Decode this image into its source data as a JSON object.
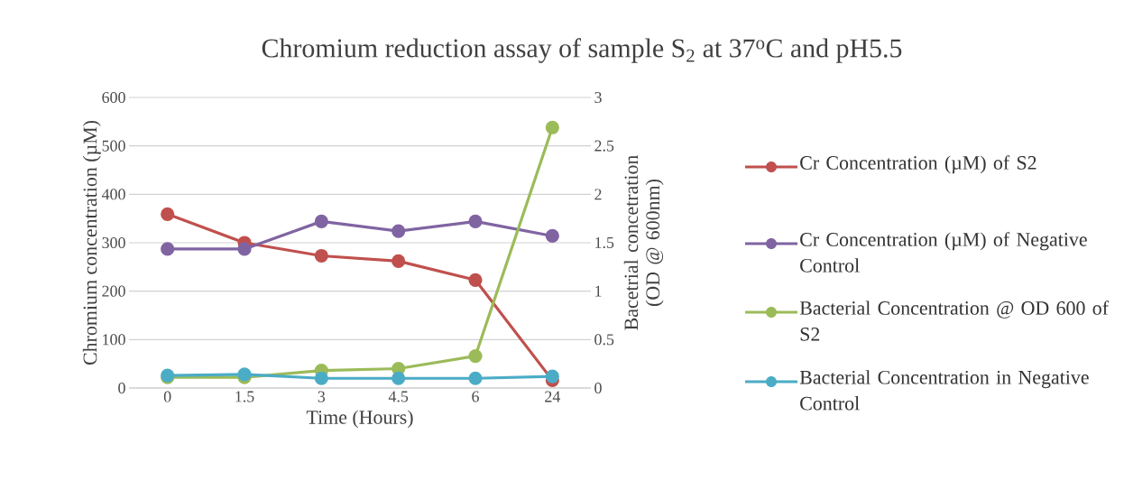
{
  "chart_data": {
    "type": "line",
    "title": "Chromium reduction assay of sample S$_{2}$ at 37$^{o}$C and pH5.5",
    "xlabel": "Time (Hours)",
    "ylabel": "Chromium concentration (µM)",
    "y2label": "Bacetrial concetration (OD @ 600nm)",
    "categories": [
      "0",
      "1.5",
      "3",
      "4.5",
      "6",
      "24"
    ],
    "series": [
      {
        "name": "Cr Concentration (µM) of S2",
        "color": "#c0504d",
        "values": [
          359,
          300,
          273,
          262,
          223,
          16
        ]
      },
      {
        "name": "Cr Concentration (µM) of Negative Control",
        "color": "#8064a2",
        "values": [
          287,
          287,
          344,
          324,
          344,
          314
        ]
      },
      {
        "name": "Bacterial Concentration @ OD 600 of S2",
        "color": "#9bbb59",
        "axis": "y2",
        "values": [
          0.11,
          0.11,
          0.18,
          0.2,
          0.33,
          2.69
        ]
      },
      {
        "name": "Bacterial Concentration in Negative Control",
        "color": "#4bacc6",
        "axis": "y2",
        "values": [
          0.13,
          0.14,
          0.1,
          0.1,
          0.1,
          0.12
        ]
      }
    ],
    "ylim": [
      0,
      600
    ],
    "yticks": [
      0,
      100,
      200,
      300,
      400,
      500,
      600
    ],
    "y2lim": [
      0,
      3
    ],
    "y2ticks": [
      0,
      0.5,
      1,
      1.5,
      2,
      2.5,
      3
    ],
    "grid": "y",
    "legend": "right",
    "marker": "circle",
    "line_style": "solid"
  }
}
